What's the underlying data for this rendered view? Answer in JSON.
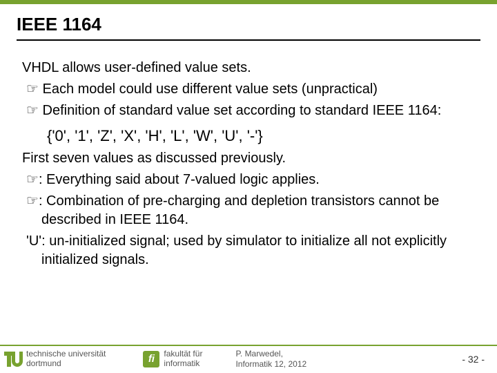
{
  "colors": {
    "accent": "#78a22f",
    "text": "#000000",
    "footer_text": "#555555",
    "background": "#ffffff"
  },
  "title": "IEEE 1164",
  "lines": {
    "l1": "VHDL allows user-defined value sets.",
    "l2": "Each model could use different value sets (unpractical)",
    "l3": "Definition of standard value set according to standard IEEE 1164:",
    "valset": "{'0', '1', 'Z', 'X', 'H', 'L', 'W', 'U', '-'}",
    "l4": "First seven values as discussed previously.",
    "l5": ": Everything said about 7-valued logic applies.",
    "l6": ": Combination of pre-charging and depletion transistors cannot be described in IEEE 1164.",
    "l7": "'U': un-initialized signal; used by simulator to initialize all not explicitly initialized signals."
  },
  "bullet_glyph": "☞",
  "footer": {
    "uni_line1": "technische universität",
    "uni_line2": "dortmund",
    "fi_line1": "fakultät für",
    "fi_line2": "informatik",
    "copy_line1": "  P. Marwedel,",
    "copy_line2": "Informatik 12,  2012",
    "pagenum": "-  32 -"
  }
}
